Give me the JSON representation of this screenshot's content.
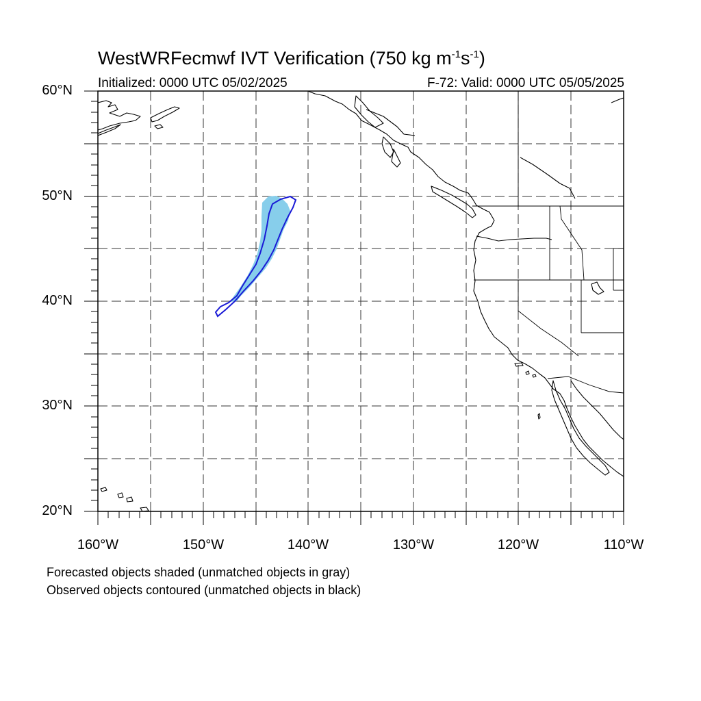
{
  "header": {
    "title_main": "WestWRFecmwf IVT Verification (750 kg m",
    "title_sup1": "-1",
    "title_mid": "s",
    "title_sup2": "-1",
    "title_end": ")",
    "initialized": "Initialized: 0000 UTC 05/02/2025",
    "valid": "F-72: Valid: 0000 UTC 05/05/2025"
  },
  "axes": {
    "lat_labels": [
      "60°N",
      "50°N",
      "40°N",
      "30°N",
      "20°N"
    ],
    "lon_labels": [
      "160°W",
      "150°W",
      "140°W",
      "130°W",
      "120°W",
      "110°W"
    ],
    "lat_range": [
      20,
      60
    ],
    "lon_range": [
      -160,
      -110
    ],
    "grid": "dashed every 5 degrees"
  },
  "objects": {
    "forecast_color": "#87ceeb",
    "observed_color": "#1a1ad6"
  },
  "footer": {
    "line1": "Forecasted objects shaded (unmatched objects in gray)",
    "line2": "Observed objects contoured (unmatched objects in black)"
  }
}
